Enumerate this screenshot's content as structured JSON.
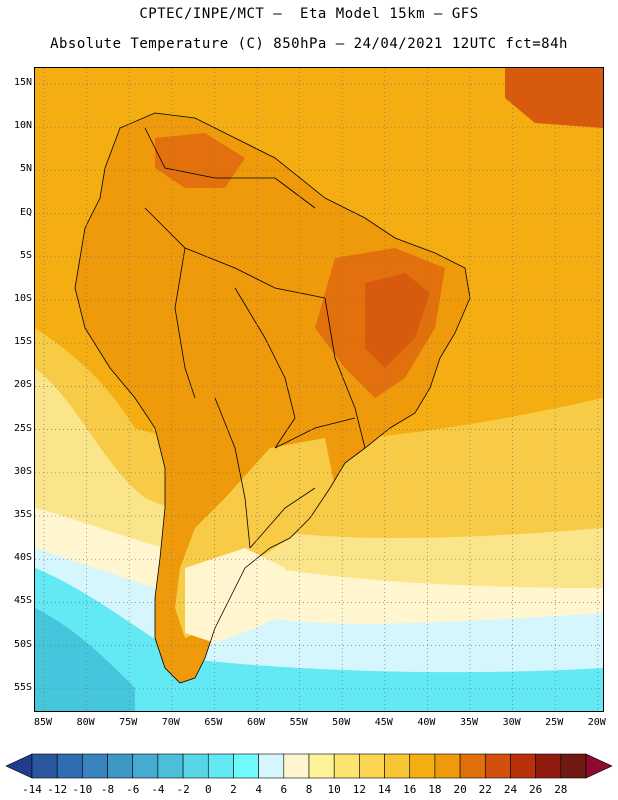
{
  "header": {
    "line1": "CPTEC/INPE/MCT –  Eta Model 15km – GFS",
    "line2": "Absolute Temperature (C) 850hPa – 24/04/2021 12UTC fct=84h"
  },
  "map": {
    "lat_ticks": [
      "15N",
      "10N",
      "5N",
      "EQ",
      "5S",
      "10S",
      "15S",
      "20S",
      "25S",
      "30S",
      "35S",
      "40S",
      "45S",
      "50S",
      "55S"
    ],
    "lon_ticks": [
      "85W",
      "80W",
      "75W",
      "70W",
      "65W",
      "60W",
      "55W",
      "50W",
      "45W",
      "40W",
      "35W",
      "30W",
      "25W",
      "20W"
    ],
    "colors": {
      "ocean_warm": "#f4ae12",
      "land_warm": "#ee9a0b",
      "hot": "#e2700d",
      "hottest": "#d85a0c",
      "mild": "#f7cb45",
      "cool": "#fbe58a",
      "cream": "#fff6d0",
      "pale_blue": "#d6f6fd",
      "cyan": "#63e9f3",
      "teal": "#45c6dc"
    }
  },
  "colorbar": {
    "ticks": [
      "-14",
      "-12",
      "-10",
      "-8",
      "-6",
      "-4",
      "-2",
      "0",
      "2",
      "4",
      "6",
      "8",
      "10",
      "12",
      "14",
      "16",
      "18",
      "20",
      "22",
      "24",
      "26",
      "28"
    ],
    "colors": [
      "#1f3d8c",
      "#2a57a0",
      "#2f6db0",
      "#3983bf",
      "#3e98c6",
      "#45abd0",
      "#4cc0da",
      "#58d6e6",
      "#63e9f3",
      "#6ffbfb",
      "#d6f6fd",
      "#fff6d0",
      "#fef396",
      "#fde36f",
      "#fbd452",
      "#f7c434",
      "#f4ae12",
      "#ee9a0b",
      "#e0700b",
      "#d2500d",
      "#b9300d",
      "#8f1c0f",
      "#701a12",
      "#8e0a2e"
    ]
  }
}
